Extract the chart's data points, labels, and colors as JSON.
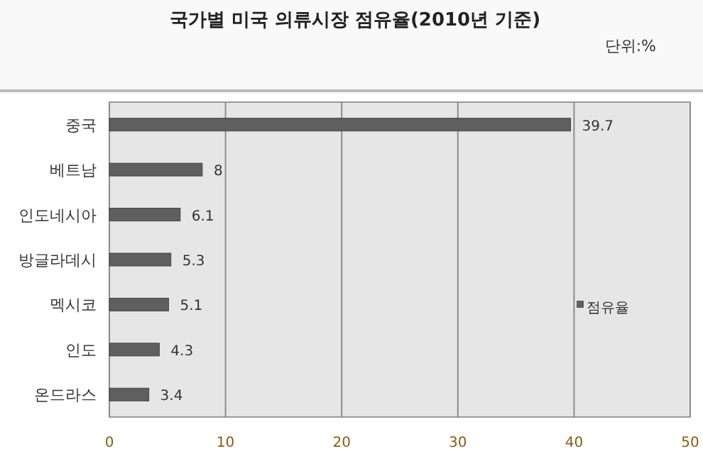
{
  "chart_data": {
    "type": "bar",
    "orientation": "horizontal",
    "title": "국가별 미국 의류시장 점유율(2010년 기준)",
    "annotations": [
      "단위:%"
    ],
    "categories": [
      "중국",
      "베트남",
      "인도네시아",
      "방글라데시",
      "멕시코",
      "인도",
      "온드라스"
    ],
    "series": [
      {
        "name": "점유율",
        "color": "#5f5f5f",
        "values": [
          39.7,
          8,
          6.1,
          5.3,
          5.1,
          4.3,
          3.4
        ]
      }
    ],
    "xlim": [
      0,
      50
    ],
    "xticks": [
      0,
      10,
      20,
      30,
      40,
      50
    ],
    "grid": "x",
    "data_labels": true,
    "legend": "right"
  }
}
